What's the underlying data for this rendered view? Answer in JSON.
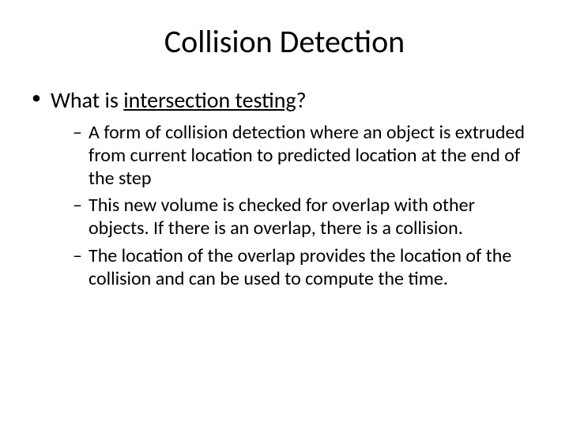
{
  "slide": {
    "title": "Collision Detection",
    "title_fontsize": 40,
    "background_color": "#ffffff",
    "text_color": "#000000",
    "bullet_l1": {
      "prefix": "What is ",
      "underlined": "intersection testing",
      "suffix": "?",
      "fontsize": 28
    },
    "bullets_l2": [
      "A form of collision detection where an object is extruded from current location to predicted location at the end of the step",
      "This new volume is checked for overlap with other objects.  If there is an overlap, there is a collision.",
      "The location of the overlap provides the location of the collision and can be used to compute the time."
    ],
    "l2_fontsize": 24
  }
}
